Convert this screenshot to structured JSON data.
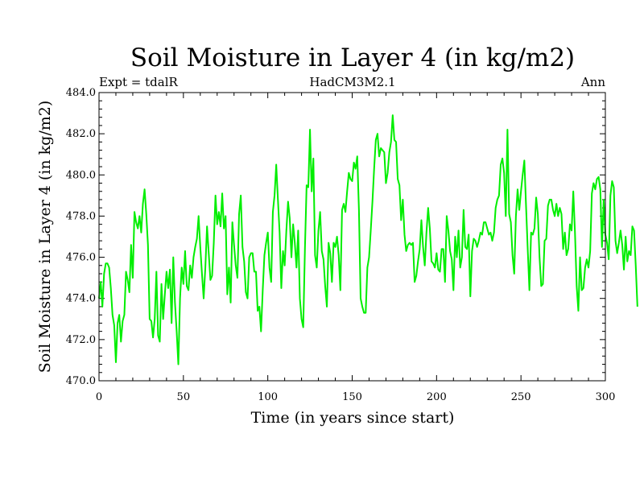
{
  "chart_data": {
    "type": "line",
    "title": "Soil Moisture in Layer 4 (in kg/m2)",
    "subtitle_left": "Expt = tdalR",
    "subtitle_center": "HadCM3M2.1",
    "subtitle_right": "Ann",
    "xlabel": "Time (in years since start)",
    "ylabel": "Soil Moisture in Layer 4 (in kg/m2)",
    "xlim": [
      0,
      300
    ],
    "ylim": [
      470,
      484
    ],
    "x_ticks": [
      0,
      50,
      100,
      150,
      200,
      250,
      300
    ],
    "x_tick_labels": [
      "0",
      "50",
      "100",
      "150",
      "200",
      "250",
      "300"
    ],
    "y_ticks": [
      470,
      472,
      474,
      476,
      478,
      480,
      482,
      484
    ],
    "y_tick_labels": [
      "470.0",
      "472.0",
      "474.0",
      "476.0",
      "478.0",
      "480.0",
      "482.0",
      "484.0"
    ],
    "grid": false,
    "line_color": "#00ee00",
    "series": [
      {
        "name": "Soil Moisture Layer 4",
        "x_start": 0,
        "x_step": 1,
        "values": [
          474.0,
          474.8,
          473.6,
          475.2,
          475.7,
          475.7,
          475.5,
          474.5,
          473.2,
          472.7,
          470.9,
          472.8,
          473.2,
          471.9,
          472.9,
          473.2,
          475.3,
          474.9,
          474.3,
          476.6,
          475.0,
          478.2,
          477.7,
          477.4,
          478.0,
          477.2,
          478.6,
          479.3,
          478.1,
          476.6,
          473.0,
          472.9,
          472.1,
          473.0,
          475.3,
          472.2,
          471.9,
          474.7,
          473.0,
          474.2,
          475.3,
          474.5,
          475.4,
          472.8,
          476.0,
          473.8,
          472.4,
          470.8,
          474.0,
          475.5,
          474.7,
          476.3,
          474.6,
          474.4,
          475.6,
          475.0,
          476.0,
          476.5,
          476.9,
          478.0,
          476.5,
          475.2,
          474.0,
          475.5,
          477.5,
          476.2,
          474.9,
          475.1,
          476.7,
          479.0,
          477.6,
          478.2,
          477.5,
          479.1,
          477.4,
          478.0,
          474.2,
          475.5,
          473.8,
          477.7,
          476.6,
          475.6,
          475.0,
          478.1,
          479.0,
          476.5,
          475.8,
          474.3,
          474.0,
          476.0,
          476.2,
          476.2,
          475.3,
          475.3,
          473.4,
          473.6,
          472.4,
          474.4,
          476.1,
          476.7,
          477.2,
          475.5,
          474.8,
          478.2,
          479.0,
          480.5,
          478.8,
          477.2,
          474.5,
          476.3,
          475.6,
          477.3,
          478.7,
          477.9,
          476.0,
          477.6,
          476.7,
          475.5,
          477.3,
          474.0,
          473.0,
          472.6,
          476.4,
          479.5,
          479.4,
          482.2,
          479.2,
          480.8,
          476.1,
          475.5,
          477.3,
          478.2,
          476.3,
          475.9,
          474.6,
          473.6,
          476.7,
          476.2,
          474.8,
          476.7,
          476.5,
          477.0,
          476.1,
          474.4,
          478.3,
          478.6,
          478.2,
          479.2,
          480.1,
          479.8,
          479.7,
          480.6,
          480.3,
          480.9,
          478.3,
          474.0,
          473.6,
          473.3,
          473.3,
          475.5,
          476.0,
          477.3,
          478.7,
          480.3,
          481.7,
          482.0,
          480.9,
          481.3,
          481.2,
          481.1,
          479.6,
          480.1,
          481.1,
          481.6,
          482.9,
          481.7,
          481.6,
          479.8,
          479.5,
          477.8,
          478.8,
          477.1,
          476.3,
          476.6,
          476.7,
          476.6,
          476.7,
          474.8,
          475.1,
          475.8,
          476.4,
          477.8,
          476.5,
          475.6,
          477.2,
          478.4,
          477.4,
          475.8,
          475.7,
          475.5,
          476.2,
          475.4,
          475.3,
          476.4,
          476.4,
          474.8,
          478.0,
          477.3,
          476.3,
          475.9,
          474.4,
          477.0,
          476.0,
          477.3,
          475.5,
          476.0,
          478.3,
          476.5,
          476.4,
          477.1,
          474.1,
          476.3,
          476.9,
          476.8,
          476.5,
          476.8,
          477.2,
          477.1,
          477.7,
          477.7,
          477.4,
          477.1,
          477.2,
          476.8,
          477.2,
          478.4,
          478.8,
          479.0,
          480.5,
          480.8,
          480.1,
          478.0,
          482.2,
          478.1,
          477.7,
          476.1,
          475.2,
          478.0,
          479.3,
          478.3,
          479.2,
          480.0,
          480.7,
          478.5,
          476.4,
          474.4,
          477.2,
          477.1,
          477.4,
          478.9,
          478.1,
          476.0,
          474.6,
          474.7,
          476.8,
          476.9,
          478.5,
          478.8,
          478.8,
          478.3,
          478.0,
          478.6,
          478.0,
          478.4,
          478.1,
          476.4,
          477.2,
          476.1,
          476.4,
          477.6,
          477.3,
          479.2,
          477.2,
          474.6,
          473.4,
          476.0,
          474.4,
          474.5,
          475.5,
          475.9,
          475.5,
          476.3,
          479.1,
          479.6,
          479.3,
          479.8,
          479.9,
          479.3,
          476.5,
          478.8,
          477.1,
          476.7,
          475.9,
          479.0,
          479.7,
          479.4,
          476.8,
          476.2,
          476.7,
          477.3,
          476.6,
          475.4,
          477.0,
          475.8,
          476.3,
          476.1,
          477.5,
          477.3,
          475.6,
          473.6
        ]
      }
    ]
  }
}
